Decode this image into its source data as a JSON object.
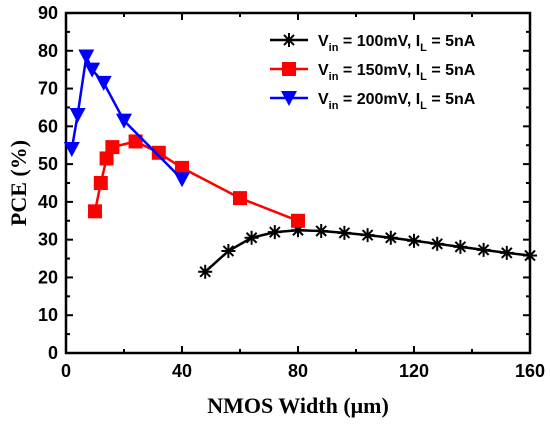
{
  "chart_data": {
    "type": "line",
    "xlabel": "NMOS Width (μm)",
    "ylabel": "PCE (%)",
    "xlim": [
      0,
      160
    ],
    "ylim": [
      0,
      90
    ],
    "xticks": [
      0,
      40,
      80,
      120,
      160
    ],
    "yticks": [
      0,
      10,
      20,
      30,
      40,
      50,
      60,
      70,
      80,
      90
    ],
    "grid": false,
    "legend_position": "top-right",
    "series": [
      {
        "name": "Vin = 100mV, IL = 5nA",
        "legend": {
          "v": "V",
          "vsub": "in",
          "mid": " = 100mV, I",
          "isub": "L",
          "tail": " = 5nA"
        },
        "color": "#000000",
        "marker": "asterisk",
        "x": [
          48,
          56,
          64,
          72,
          80,
          88,
          96,
          104,
          112,
          120,
          128,
          136,
          144,
          152,
          160
        ],
        "y": [
          21.5,
          27,
          30.5,
          32,
          32.5,
          32.3,
          31.8,
          31.2,
          30.5,
          29.7,
          28.9,
          28.1,
          27.3,
          26.5,
          25.8
        ]
      },
      {
        "name": "Vin = 150mV, IL = 5nA",
        "legend": {
          "v": "V",
          "vsub": "in",
          "mid": " = 150mV, I",
          "isub": "L",
          "tail": " = 5nA"
        },
        "color": "#ff0000",
        "marker": "square",
        "x": [
          10,
          12,
          14,
          16,
          24,
          32,
          40,
          60,
          80
        ],
        "y": [
          37.5,
          45,
          51.5,
          54.5,
          56,
          53,
          49,
          41,
          35
        ]
      },
      {
        "name": "Vin = 200mV, IL = 5nA",
        "legend": {
          "v": "V",
          "vsub": "in",
          "mid": " = 200mV, I",
          "isub": "L",
          "tail": " = 5nA"
        },
        "color": "#0000ff",
        "marker": "triangle-down",
        "x": [
          2,
          4,
          7,
          9,
          13,
          20,
          40
        ],
        "y": [
          54,
          63,
          78.5,
          75,
          71.5,
          61.5,
          46
        ]
      }
    ]
  }
}
